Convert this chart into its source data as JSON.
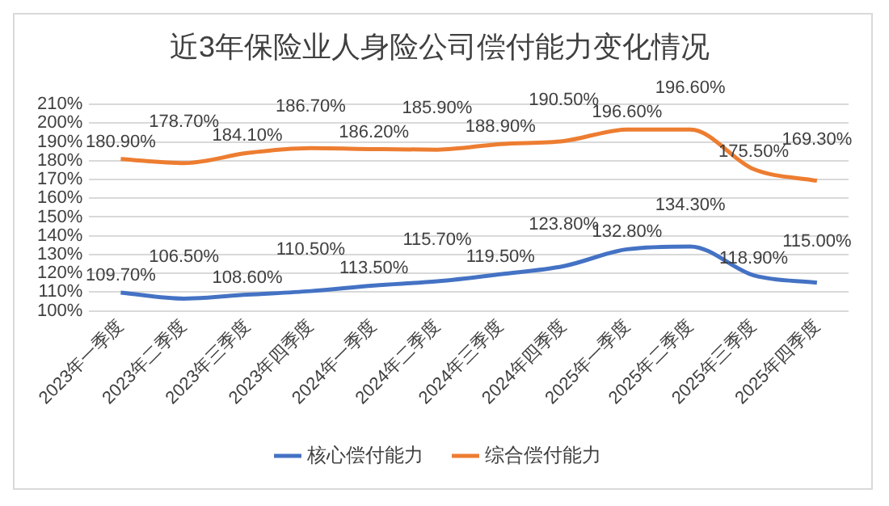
{
  "chart_data": {
    "type": "line",
    "title": "近3年保险业人身险公司偿付能力变化情况",
    "categories": [
      "2023年一季度",
      "2023年二季度",
      "2023年三季度",
      "2023年四季度",
      "2024年一季度",
      "2024年二季度",
      "2024年三季度",
      "2024年四季度",
      "2025年一季度",
      "2025年二季度",
      "2025年三季度",
      "2025年四季度"
    ],
    "series": [
      {
        "name": "核心偿付能力",
        "color": "#4472c4",
        "values": [
          109.7,
          106.5,
          108.6,
          110.5,
          113.5,
          115.7,
          119.5,
          123.8,
          132.8,
          134.3,
          118.9,
          115.0
        ],
        "value_labels": [
          "109.70%",
          "106.50%",
          "108.60%",
          "110.50%",
          "113.50%",
          "115.70%",
          "119.50%",
          "123.80%",
          "132.80%",
          "134.30%",
          "118.90%",
          "115.00%"
        ]
      },
      {
        "name": "综合偿付能力",
        "color": "#ed7d31",
        "values": [
          180.9,
          178.7,
          184.1,
          186.7,
          186.2,
          185.9,
          188.9,
          190.5,
          196.6,
          196.6,
          175.5,
          169.3
        ],
        "value_labels": [
          "180.90%",
          "178.70%",
          "184.10%",
          "186.70%",
          "186.20%",
          "185.90%",
          "188.90%",
          "190.50%",
          "196.60%",
          "196.60%",
          "175.50%",
          "169.30%"
        ]
      }
    ],
    "ylim": [
      100,
      210
    ],
    "yticks": [
      {
        "value": 100,
        "label": "100%"
      },
      {
        "value": 110,
        "label": "110%"
      },
      {
        "value": 120,
        "label": "120%"
      },
      {
        "value": 130,
        "label": "130%"
      },
      {
        "value": 140,
        "label": "140%"
      },
      {
        "value": 150,
        "label": "150%"
      },
      {
        "value": 160,
        "label": "160%"
      },
      {
        "value": 170,
        "label": "170%"
      },
      {
        "value": 180,
        "label": "180%"
      },
      {
        "value": 190,
        "label": "190%"
      },
      {
        "value": 200,
        "label": "200%"
      },
      {
        "value": 210,
        "label": "210%"
      }
    ],
    "grid": "y",
    "legend": "bottom",
    "marker": "none",
    "line_style": "solid"
  }
}
